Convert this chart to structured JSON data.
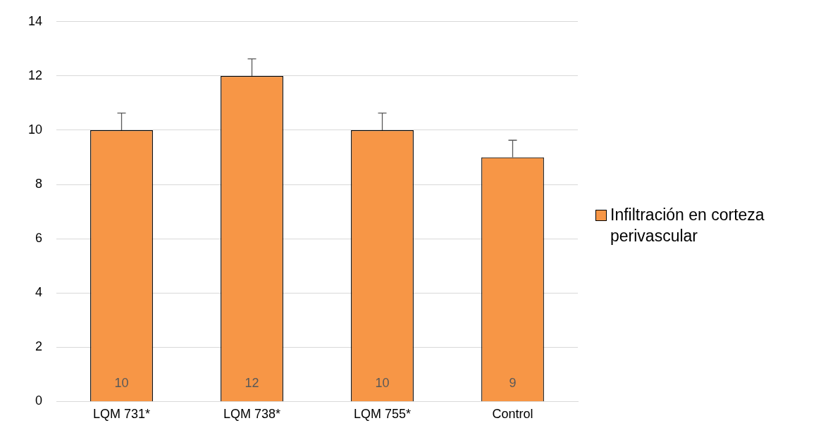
{
  "chart_data": {
    "type": "bar",
    "categories": [
      "LQM 731*",
      "LQM 738*",
      "LQM 755*",
      "Control"
    ],
    "series": [
      {
        "name": "Infiltración en corteza perivascular",
        "color": "#f79646",
        "values": [
          10,
          12,
          10,
          9
        ],
        "errors": [
          [
            10,
            10.63
          ],
          [
            12,
            12.63
          ],
          [
            10,
            10.63
          ],
          [
            9,
            9.63
          ]
        ]
      }
    ],
    "ylim": [
      0,
      14
    ],
    "yticks": [
      0,
      2,
      4,
      6,
      8,
      10,
      12,
      14
    ],
    "grid": "y",
    "legend": "right",
    "data_labels": true
  }
}
